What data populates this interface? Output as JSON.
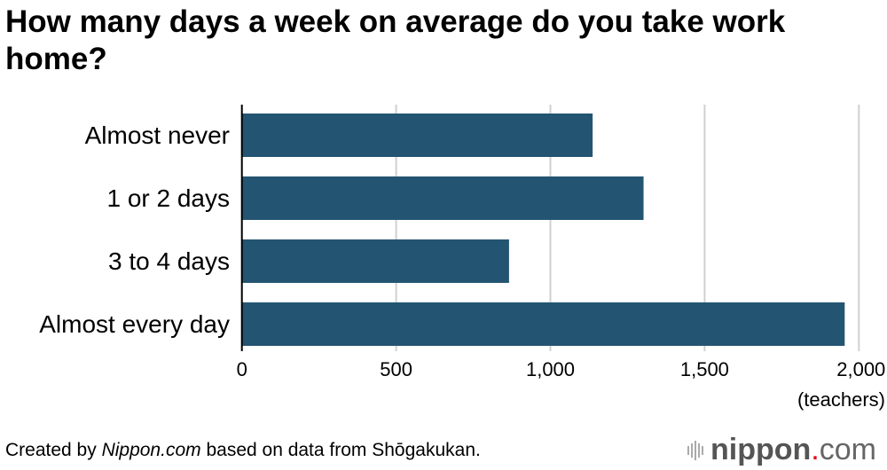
{
  "chart_data": {
    "type": "bar",
    "title": "How many days a week on average do you take work home?",
    "categories": [
      "Almost never",
      "1 or 2 days",
      "3 to 4 days",
      "Almost every day"
    ],
    "values": [
      1137,
      1302,
      866,
      1954
    ],
    "xlim": [
      0,
      2000
    ],
    "xticks": [
      0,
      500,
      1000,
      1500,
      2000
    ],
    "xtick_labels": [
      "0",
      "500",
      "1,000",
      "1,500",
      "2,000"
    ],
    "xlabel": "(teachers)",
    "bar_color": "#235572",
    "grid": true
  },
  "footer": {
    "prefix": "Created by ",
    "source_site": "Nippon.com",
    "suffix": " based on data from Shōgakukan."
  },
  "logo": {
    "name": "nippon",
    "dot": ".",
    "tld": "com"
  }
}
